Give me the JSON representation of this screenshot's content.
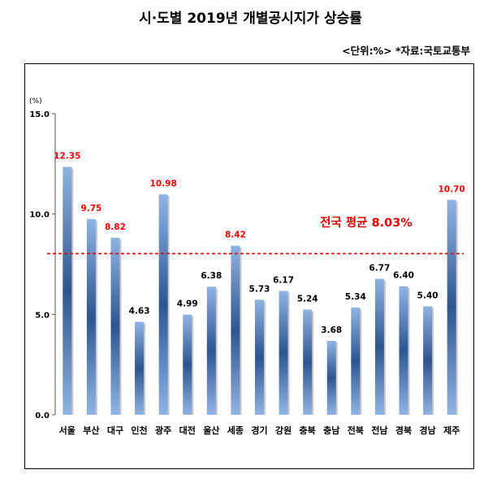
{
  "title": "시·도별 2019년 개별공시지가 상승률",
  "unit_note": "<단위:%>  *자료:국토교통부",
  "chart_data": {
    "type": "bar",
    "y_unit_label": "(%)",
    "categories": [
      "서울",
      "부산",
      "대구",
      "인천",
      "광주",
      "대전",
      "울산",
      "세종",
      "경기",
      "강원",
      "충북",
      "충남",
      "전북",
      "전남",
      "경북",
      "경남",
      "제주"
    ],
    "values": [
      12.35,
      9.75,
      8.82,
      4.63,
      10.98,
      4.99,
      6.38,
      8.42,
      5.73,
      6.17,
      5.24,
      3.68,
      5.34,
      6.77,
      6.4,
      5.4,
      10.7
    ],
    "value_labels": [
      "12.35",
      "9.75",
      "8.82",
      "4.63",
      "10.98",
      "4.99",
      "6.38",
      "8.42",
      "5.73",
      "6.17",
      "5.24",
      "3.68",
      "5.34",
      "6.77",
      "6.40",
      "5.40",
      "10.70"
    ],
    "highlight_color": "#ff0000",
    "normal_label_color": "#000000",
    "highlighted_indices": [
      0,
      1,
      2,
      4,
      7,
      16
    ],
    "ylim": [
      0,
      15
    ],
    "yticks": [
      0,
      5,
      10,
      15
    ],
    "ytick_labels": [
      "0.0",
      "5.0",
      "10.0",
      "15.0"
    ],
    "bar_color_light": "#8fb4e3",
    "bar_color_dark": "#2e5590",
    "average": {
      "value": 8.03,
      "label": "전국 평균 8.03%",
      "color": "#e00000"
    },
    "grid": false,
    "legend": "none"
  }
}
